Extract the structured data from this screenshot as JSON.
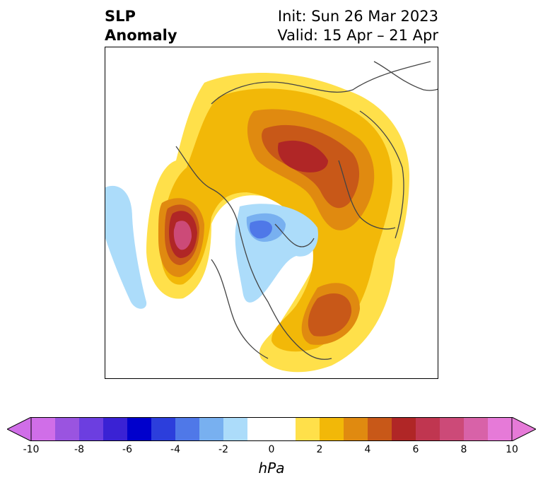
{
  "header": {
    "title_line1": "SLP",
    "title_line2": "Anomaly",
    "init_line": "Init: Sun 26 Mar 2023",
    "valid_line": "Valid: 15 Apr – 21 Apr"
  },
  "colorbar": {
    "units": "hPa",
    "tick_labels": [
      "-10",
      "-8",
      "-6",
      "-4",
      "-2",
      "0",
      "2",
      "4",
      "6",
      "8",
      "10"
    ],
    "colors": [
      "#d06ee8",
      "#9a54e0",
      "#6c3ee0",
      "#3a22d4",
      "#0000cc",
      "#2c3edc",
      "#4f78e8",
      "#78b0f0",
      "#acdcfa",
      "#ffffff",
      "#ffffff",
      "#ffe04a",
      "#f2b808",
      "#e08a10",
      "#c85818",
      "#b02626",
      "#c03650",
      "#cc4a78",
      "#d862a8",
      "#e67ad8"
    ],
    "extend": "both"
  }
}
